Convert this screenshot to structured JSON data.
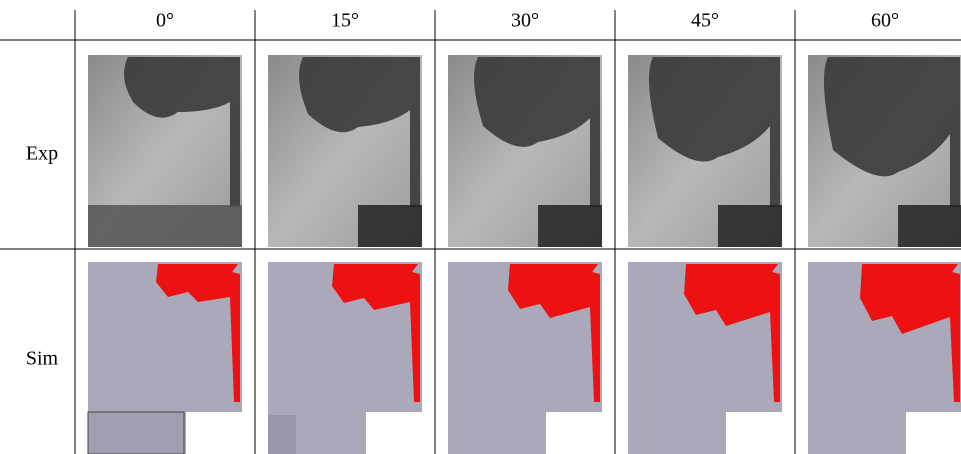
{
  "table": {
    "columns": [
      "0°",
      "15°",
      "30°",
      "45°",
      "60°"
    ],
    "rows": [
      "Exp",
      "Sim"
    ]
  }
}
